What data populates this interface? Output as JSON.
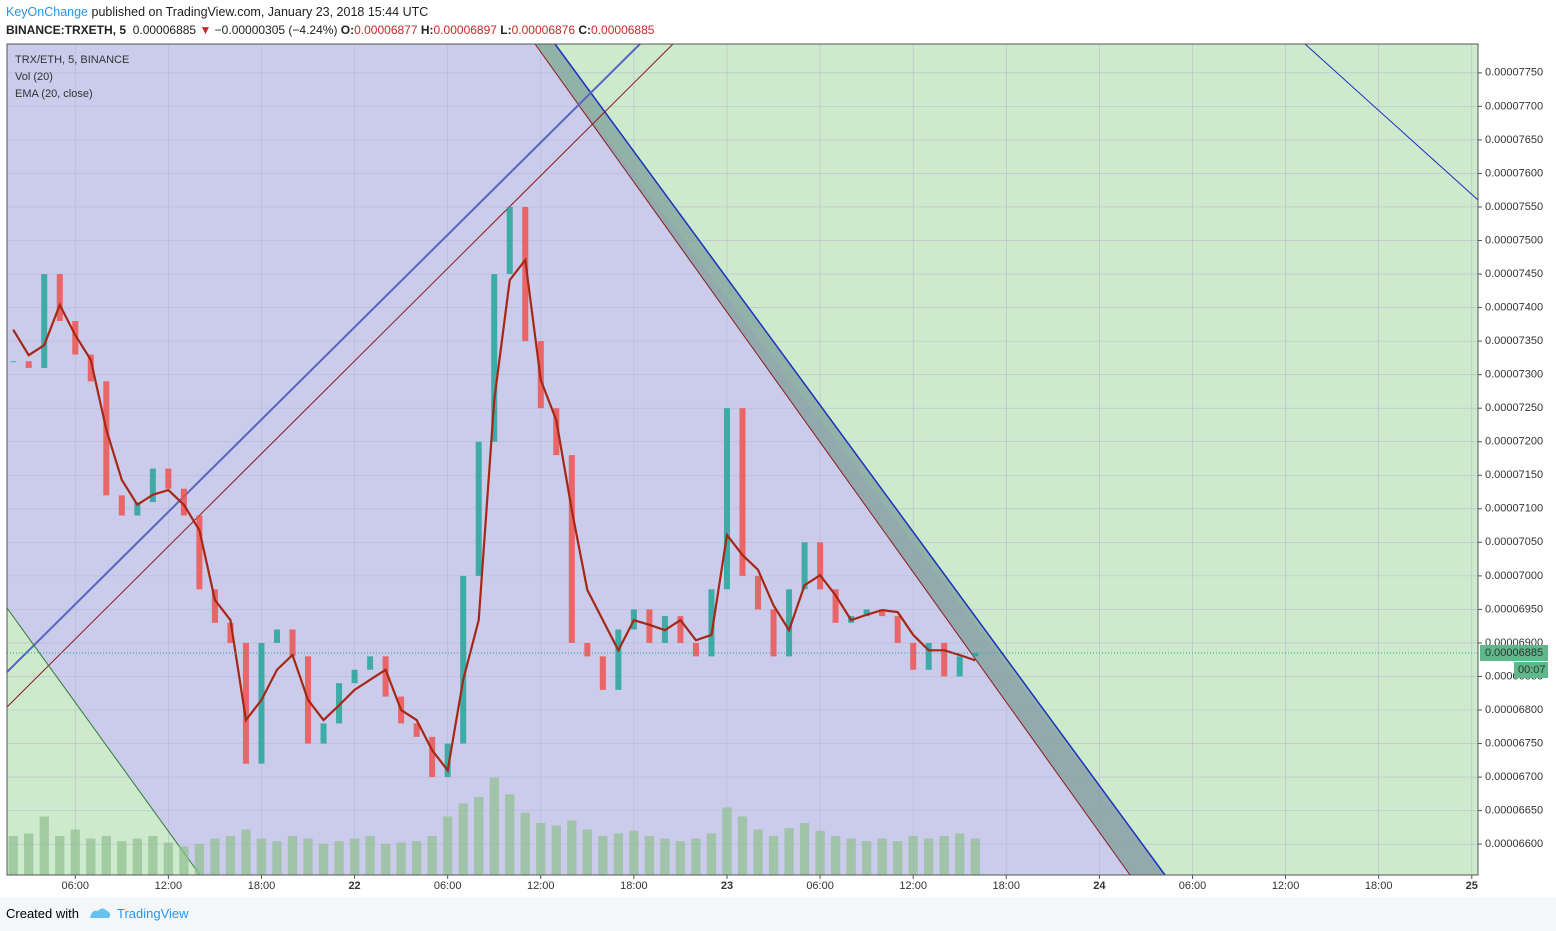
{
  "header": {
    "author": "KeyOnChange",
    "published": "published on TradingView.com, January 23, 2018 15:44 UTC",
    "symbol": "BINANCE:TRXETH, 5",
    "last": "0.00006885",
    "arrow": "▼",
    "change": "−0.00000305 (−4.24%)",
    "o_label": "O:",
    "o": "0.00006877",
    "h_label": "H:",
    "h": "0.00006897",
    "l_label": "L:",
    "l": "0.00006876",
    "c_label": "C:",
    "c": "0.00006885"
  },
  "chart_data": {
    "type": "candle-line",
    "legend": [
      "TRX/ETH, 5, BINANCE",
      "Vol (20)",
      "EMA (20, close)"
    ],
    "x": [
      2,
      3,
      4,
      5,
      6,
      7,
      8,
      9,
      10,
      11,
      12,
      13,
      14,
      15,
      16,
      17,
      18,
      19,
      20,
      21,
      22,
      23,
      24,
      25,
      26,
      27,
      28,
      29,
      30,
      31,
      32,
      33,
      34,
      35,
      36,
      37,
      38,
      39,
      40,
      41,
      42,
      43,
      44,
      45,
      46,
      47,
      48,
      49,
      50,
      51,
      52,
      53,
      54,
      55,
      56,
      57,
      58,
      59,
      60,
      61,
      62,
      63,
      64
    ],
    "xlim": [
      1.6,
      96.4
    ],
    "xticks": [
      {
        "value": 6,
        "label": "06:00"
      },
      {
        "value": 12,
        "label": "12:00"
      },
      {
        "value": 18,
        "label": "18:00"
      },
      {
        "value": 24,
        "label": "22"
      },
      {
        "value": 30,
        "label": "06:00"
      },
      {
        "value": 36,
        "label": "12:00"
      },
      {
        "value": 42,
        "label": "18:00"
      },
      {
        "value": 48,
        "label": "23"
      },
      {
        "value": 54,
        "label": "06:00"
      },
      {
        "value": 60,
        "label": "12:00"
      },
      {
        "value": 66,
        "label": "18:00"
      },
      {
        "value": 72,
        "label": "24"
      },
      {
        "value": 78,
        "label": "06:00"
      },
      {
        "value": 84,
        "label": "12:00"
      },
      {
        "value": 90,
        "label": "18:00"
      },
      {
        "value": 96,
        "label": "25"
      }
    ],
    "ylim": [
      6.554e-05,
      7.793e-05
    ],
    "yticks": [
      {
        "value": 6.6e-05,
        "label": "0.00006600"
      },
      {
        "value": 6.65e-05,
        "label": "0.00006650"
      },
      {
        "value": 6.7e-05,
        "label": "0.00006700"
      },
      {
        "value": 6.75e-05,
        "label": "0.00006750"
      },
      {
        "value": 6.8e-05,
        "label": "0.00006800"
      },
      {
        "value": 6.85e-05,
        "label": "0.00006850"
      },
      {
        "value": 6.9e-05,
        "label": "0.00006900"
      },
      {
        "value": 6.95e-05,
        "label": "0.00006950"
      },
      {
        "value": 7e-05,
        "label": "0.00007000"
      },
      {
        "value": 7.05e-05,
        "label": "0.00007050"
      },
      {
        "value": 7.1e-05,
        "label": "0.00007100"
      },
      {
        "value": 7.15e-05,
        "label": "0.00007150"
      },
      {
        "value": 7.2e-05,
        "label": "0.00007200"
      },
      {
        "value": 7.25e-05,
        "label": "0.00007250"
      },
      {
        "value": 7.3e-05,
        "label": "0.00007300"
      },
      {
        "value": 7.35e-05,
        "label": "0.00007350"
      },
      {
        "value": 7.4e-05,
        "label": "0.00007400"
      },
      {
        "value": 7.45e-05,
        "label": "0.00007450"
      },
      {
        "value": 7.5e-05,
        "label": "0.00007500"
      },
      {
        "value": 7.55e-05,
        "label": "0.00007550"
      },
      {
        "value": 7.6e-05,
        "label": "0.00007600"
      },
      {
        "value": 7.65e-05,
        "label": "0.00007650"
      },
      {
        "value": 7.7e-05,
        "label": "0.00007700"
      },
      {
        "value": 7.75e-05,
        "label": "0.00007750"
      }
    ],
    "series": [
      {
        "name": "TRX/ETH, 5, BINANCE",
        "color": "#26a69a",
        "down_color": "#ef5350",
        "values": [
          7.32e-05,
          7.31e-05,
          7.45e-05,
          7.38e-05,
          7.33e-05,
          7.29e-05,
          7.12e-05,
          7.09e-05,
          7.11e-05,
          7.16e-05,
          7.13e-05,
          7.09e-05,
          6.98e-05,
          6.93e-05,
          6.9e-05,
          6.72e-05,
          6.9e-05,
          6.92e-05,
          6.88e-05,
          6.75e-05,
          6.78e-05,
          6.84e-05,
          6.86e-05,
          6.88e-05,
          6.82e-05,
          6.78e-05,
          6.76e-05,
          6.7e-05,
          6.75e-05,
          7e-05,
          7.2e-05,
          7.45e-05,
          7.55e-05,
          7.35e-05,
          7.25e-05,
          7.18e-05,
          6.9e-05,
          6.88e-05,
          6.83e-05,
          6.92e-05,
          6.95e-05,
          6.9e-05,
          6.94e-05,
          6.9e-05,
          6.88e-05,
          6.98e-05,
          7.25e-05,
          7e-05,
          6.95e-05,
          6.88e-05,
          6.98e-05,
          7.05e-05,
          6.98e-05,
          6.93e-05,
          6.94e-05,
          6.95e-05,
          6.94e-05,
          6.9e-05,
          6.86e-05,
          6.9e-05,
          6.85e-05,
          6.88e-05,
          6.885e-05
        ]
      },
      {
        "name": "EMA (20, close)",
        "color": "#a52714",
        "values": [
          7.367e-05,
          7.329e-05,
          7.344e-05,
          7.404e-05,
          7.359e-05,
          7.322e-05,
          7.218e-05,
          7.143e-05,
          7.106e-05,
          7.121e-05,
          7.128e-05,
          7.106e-05,
          7.068e-05,
          6.964e-05,
          6.934e-05,
          6.785e-05,
          6.815e-05,
          6.86e-05,
          6.882e-05,
          6.815e-05,
          6.785e-05,
          6.807e-05,
          6.83e-05,
          6.845e-05,
          6.86e-05,
          6.8e-05,
          6.785e-05,
          6.74e-05,
          6.71e-05,
          6.845e-05,
          6.934e-05,
          7.262e-05,
          7.441e-05,
          7.471e-05,
          7.292e-05,
          7.232e-05,
          7.098e-05,
          6.979e-05,
          6.934e-05,
          6.889e-05,
          6.934e-05,
          6.927e-05,
          6.919e-05,
          6.934e-05,
          6.904e-05,
          6.912e-05,
          7.061e-05,
          7.031e-05,
          7.009e-05,
          6.956e-05,
          6.919e-05,
          6.986e-05,
          7.001e-05,
          6.971e-05,
          6.934e-05,
          6.942e-05,
          6.949e-05,
          6.946e-05,
          6.912e-05,
          6.889e-05,
          6.889e-05,
          6.882e-05,
          6.874e-05
        ]
      },
      {
        "name": "Vol (20)",
        "color": "#8fbf8f",
        "vlim": [
          0,
          100
        ],
        "values": [
          30,
          32,
          45,
          30,
          35,
          28,
          30,
          26,
          28,
          30,
          25,
          22,
          24,
          28,
          30,
          35,
          28,
          26,
          30,
          28,
          24,
          26,
          28,
          30,
          24,
          25,
          26,
          30,
          45,
          55,
          60,
          75,
          62,
          48,
          40,
          38,
          42,
          35,
          30,
          32,
          34,
          30,
          28,
          26,
          28,
          32,
          52,
          45,
          35,
          30,
          36,
          40,
          34,
          30,
          28,
          26,
          28,
          26,
          30,
          28,
          30,
          32,
          28
        ]
      }
    ],
    "last_price": "0.00006885",
    "countdown": "00:07"
  },
  "footer": {
    "created": "Created with",
    "brand": "TradingView"
  }
}
